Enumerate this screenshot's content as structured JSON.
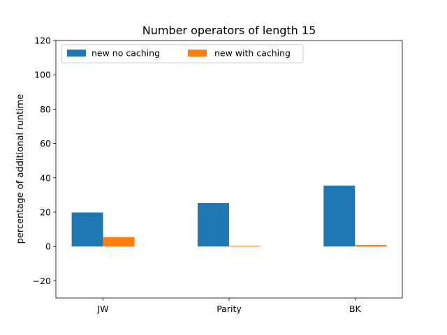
{
  "chart_data": {
    "type": "bar",
    "title": "Number operators of length 15",
    "xlabel": "",
    "ylabel": "percentage of additional runtime",
    "categories": [
      "JW",
      "Parity",
      "BK"
    ],
    "series": [
      {
        "name": "new no caching",
        "values": [
          19.8,
          25.3,
          35.5
        ],
        "color": "#1f77b4"
      },
      {
        "name": "new with caching",
        "values": [
          5.5,
          0.4,
          0.9
        ],
        "color": "#ff7f0e"
      }
    ],
    "ylim": [
      -30,
      120
    ],
    "yticks": [
      -20,
      0,
      20,
      40,
      60,
      80,
      100,
      120
    ],
    "grid": false,
    "legend": "top-left, 2 columns"
  }
}
